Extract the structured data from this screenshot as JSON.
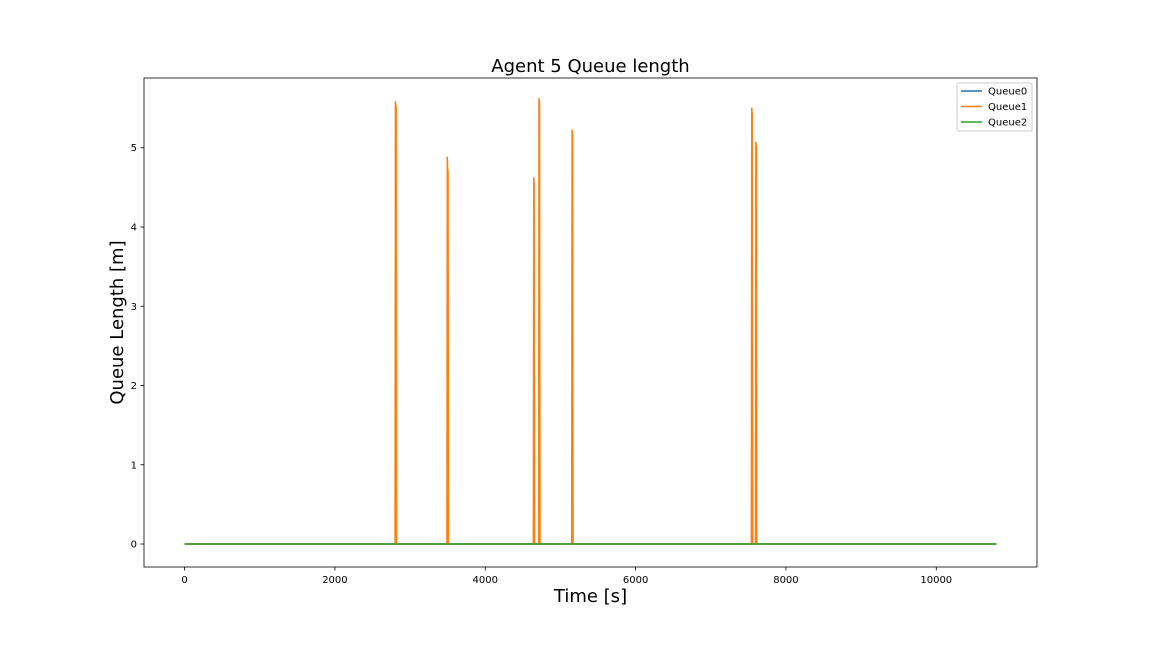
{
  "chart_data": {
    "type": "line",
    "title": "Agent 5 Queue length",
    "xlabel": "Time [s]",
    "ylabel": "Queue Length [m]",
    "xlim": [
      -540,
      11340
    ],
    "ylim": [
      -0.29,
      5.88
    ],
    "xticks": [
      0,
      2000,
      4000,
      6000,
      8000,
      10000
    ],
    "yticks": [
      0,
      1,
      2,
      3,
      4,
      5
    ],
    "grid": false,
    "legend_position": "top-right",
    "series": [
      {
        "name": "Queue0",
        "color": "#1f77b4",
        "x": [
          0,
          10800
        ],
        "y": [
          0,
          0
        ]
      },
      {
        "name": "Queue1",
        "color": "#ff7f0e",
        "x": [
          0,
          2800,
          2805,
          2815,
          2820,
          3490,
          3495,
          3500,
          3505,
          3510,
          4640,
          4645,
          4650,
          4655,
          4710,
          4715,
          4722,
          4728,
          5150,
          5155,
          5162,
          5168,
          7540,
          7545,
          7552,
          7558,
          7595,
          7600,
          7607,
          7612,
          10800
        ],
        "y": [
          0,
          0,
          5.58,
          5.5,
          0,
          0,
          4.88,
          4.72,
          4.7,
          0,
          0,
          4.62,
          4.55,
          0,
          0,
          5.62,
          5.55,
          0,
          0,
          5.22,
          5.15,
          0,
          0,
          5.5,
          5.42,
          0,
          0,
          5.07,
          5.0,
          0,
          0
        ]
      },
      {
        "name": "Queue2",
        "color": "#2ca02c",
        "x": [
          0,
          10800
        ],
        "y": [
          0,
          0
        ]
      }
    ]
  }
}
